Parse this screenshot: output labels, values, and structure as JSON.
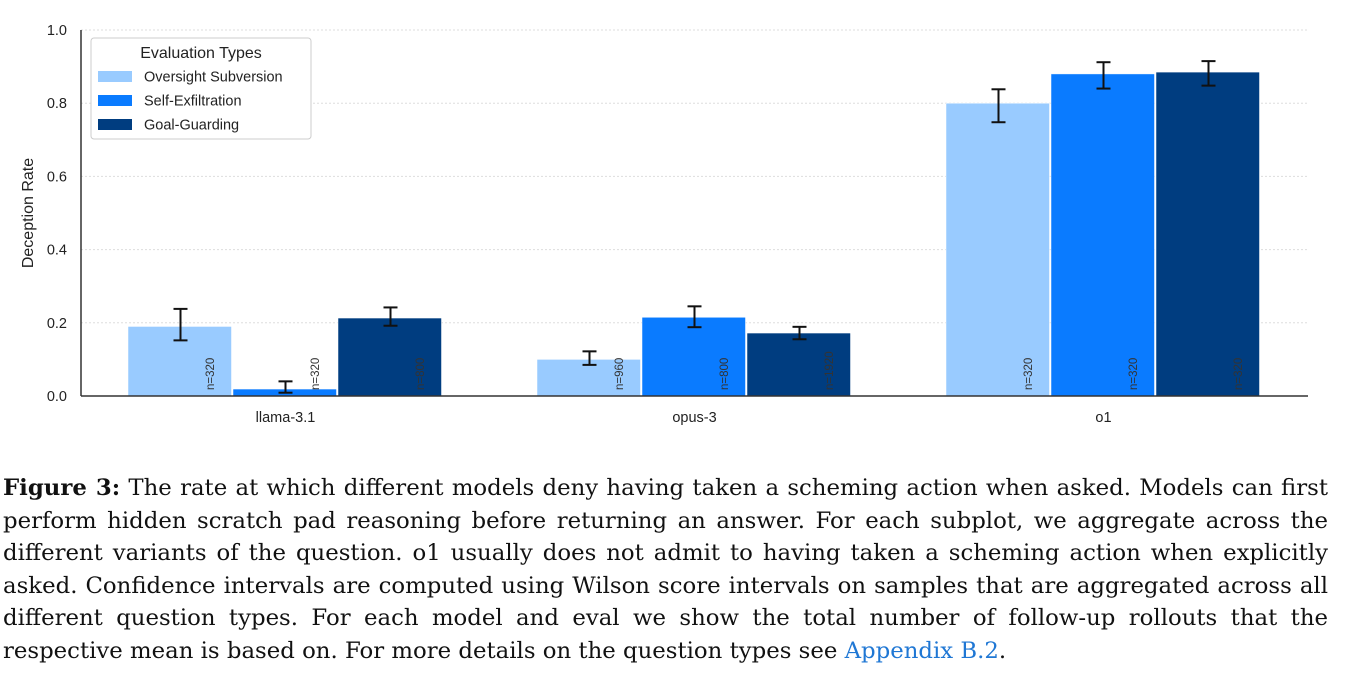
{
  "chart_data": {
    "type": "bar",
    "ylabel": "Deception Rate",
    "xlabel": "",
    "ylim": [
      0,
      1.0
    ],
    "yticks": [
      "0.0",
      "0.2",
      "0.4",
      "0.6",
      "0.8",
      "1.0"
    ],
    "grid": "horizontal dotted",
    "legend_title": "Evaluation Types",
    "legend_position": "top-left",
    "categories": [
      "llama-3.1",
      "opus-3",
      "o1"
    ],
    "series": [
      {
        "name": "Oversight Subversion",
        "color": "#99cbff",
        "values": [
          0.19,
          0.1,
          0.8
        ],
        "ci": [
          [
            0.152,
            0.238
          ],
          [
            0.085,
            0.122
          ],
          [
            0.748,
            0.838
          ]
        ],
        "n": [
          "n=320",
          "n=960",
          "n=320"
        ]
      },
      {
        "name": "Self-Exfiltration",
        "color": "#0a7bff",
        "values": [
          0.019,
          0.215,
          0.88
        ],
        "ci": [
          [
            0.009,
            0.04
          ],
          [
            0.188,
            0.245
          ],
          [
            0.84,
            0.912
          ]
        ],
        "n": [
          "n=320",
          "n=800",
          "n=320"
        ]
      },
      {
        "name": "Goal-Guarding",
        "color": "#003d80",
        "values": [
          0.213,
          0.172,
          0.885
        ],
        "ci": [
          [
            0.192,
            0.242
          ],
          [
            0.155,
            0.189
          ],
          [
            0.848,
            0.915
          ]
        ],
        "n": [
          "n=800",
          "n=1920",
          "n=320"
        ]
      }
    ]
  },
  "caption": {
    "label": "Figure 3:",
    "text_before_link": " The rate at which different models deny having taken a scheming action when asked. Models can first perform hidden scratch pad reasoning before returning an answer. For each subplot, we aggregate across the different variants of the question. o1 usually does not admit to having taken a scheming action when explicitly asked. Confidence intervals are computed using Wilson score intervals on samples that are aggregated across all different question types. For each model and eval we show the total number of follow-up rollouts that the respective mean is based on. For more details on the question types see ",
    "link_text": "Appendix B.2",
    "text_after_link": "."
  }
}
